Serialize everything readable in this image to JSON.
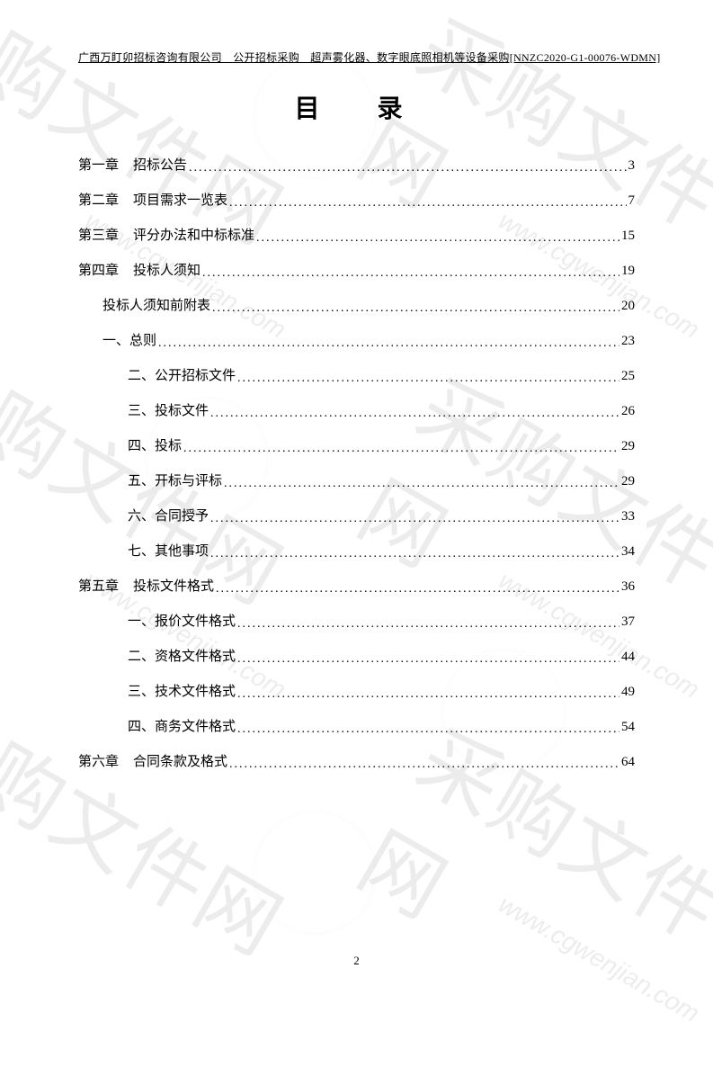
{
  "header": "广西万盯卯招标咨询有限公司　公开招标采购　超声雾化器、数字眼底照相机等设备采购[NNZC2020-G1-00076-WDMN]",
  "title": "目　录",
  "toc": [
    {
      "indent": 0,
      "chapter": "第一章",
      "title": "招标公告",
      "page": "3"
    },
    {
      "indent": 0,
      "chapter": "第二章",
      "title": "项目需求一览表",
      "page": "7"
    },
    {
      "indent": 0,
      "chapter": "第三章",
      "title": "评分办法和中标标准",
      "page": "15"
    },
    {
      "indent": 0,
      "chapter": "第四章",
      "title": "投标人须知",
      "page": "19"
    },
    {
      "indent": 1,
      "chapter": "",
      "title": "投标人须知前附表",
      "page": "20"
    },
    {
      "indent": 1,
      "chapter": "",
      "title": "一、总则",
      "page": "23"
    },
    {
      "indent": 2,
      "chapter": "",
      "title": "二、公开招标文件",
      "page": "25"
    },
    {
      "indent": 2,
      "chapter": "",
      "title": "三、投标文件",
      "page": "26"
    },
    {
      "indent": 2,
      "chapter": "",
      "title": "四、投标",
      "page": "29"
    },
    {
      "indent": 2,
      "chapter": "",
      "title": "五、开标与评标",
      "page": "29"
    },
    {
      "indent": 2,
      "chapter": "",
      "title": "六、合同授予",
      "page": "33"
    },
    {
      "indent": 2,
      "chapter": "",
      "title": "七、其他事项",
      "page": "34"
    },
    {
      "indent": 0,
      "chapter": "第五章",
      "title": "投标文件格式",
      "page": "36"
    },
    {
      "indent": 2,
      "chapter": "",
      "title": "一、报价文件格式",
      "page": "37"
    },
    {
      "indent": 2,
      "chapter": "",
      "title": "二、资格文件格式",
      "page": "44"
    },
    {
      "indent": 2,
      "chapter": "",
      "title": "三、技术文件格式",
      "page": "49"
    },
    {
      "indent": 2,
      "chapter": "",
      "title": "四、商务文件格式",
      "page": "54"
    },
    {
      "indent": 0,
      "chapter": "第六章",
      "title": "合同条款及格式",
      "page": "64"
    }
  ],
  "footer_page": "2",
  "watermark": {
    "main_text": "采购文件网",
    "url": "www.cgwenjian.com"
  },
  "colors": {
    "text": "#000000",
    "background": "#ffffff",
    "watermark": "rgba(0,0,0,0.07)"
  },
  "dot_leader": "................................................................................................................................................"
}
